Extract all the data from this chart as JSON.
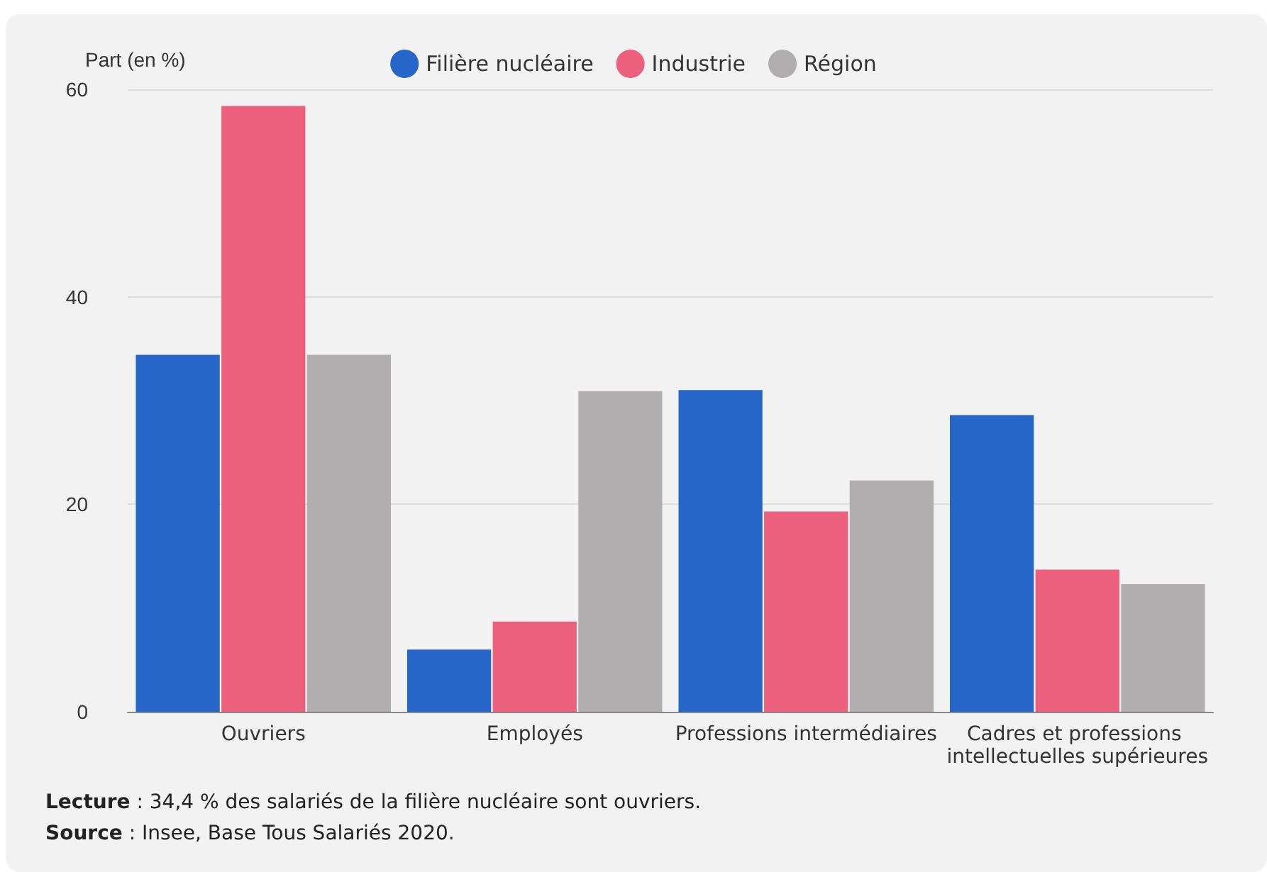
{
  "chart_data": {
    "type": "bar",
    "ylabel": "Part (en %)",
    "categories": [
      "Ouvriers",
      "Employés",
      "Professions intermédiaires",
      "Cadres et professions intellectuelles supérieures"
    ],
    "series": [
      {
        "name": "Filière nucléaire",
        "color": "#2566c8",
        "values": [
          34.4,
          6.0,
          31.0,
          28.6
        ]
      },
      {
        "name": "Industrie",
        "color": "#ec5f7d",
        "values": [
          58.4,
          8.7,
          19.3,
          13.7
        ]
      },
      {
        "name": "Région",
        "color": "#b0aeaf",
        "values": [
          34.4,
          30.9,
          22.3,
          12.3
        ]
      }
    ],
    "ylim": [
      0,
      60
    ],
    "yticks": [
      0,
      20,
      40,
      60
    ],
    "grid": "y",
    "legend": "top",
    "annotations": [
      "Lecture : 34,4 % des salariés de la filière nucléaire sont ouvriers.",
      "Source : Insee, Base Tous Salariés 2020."
    ]
  }
}
